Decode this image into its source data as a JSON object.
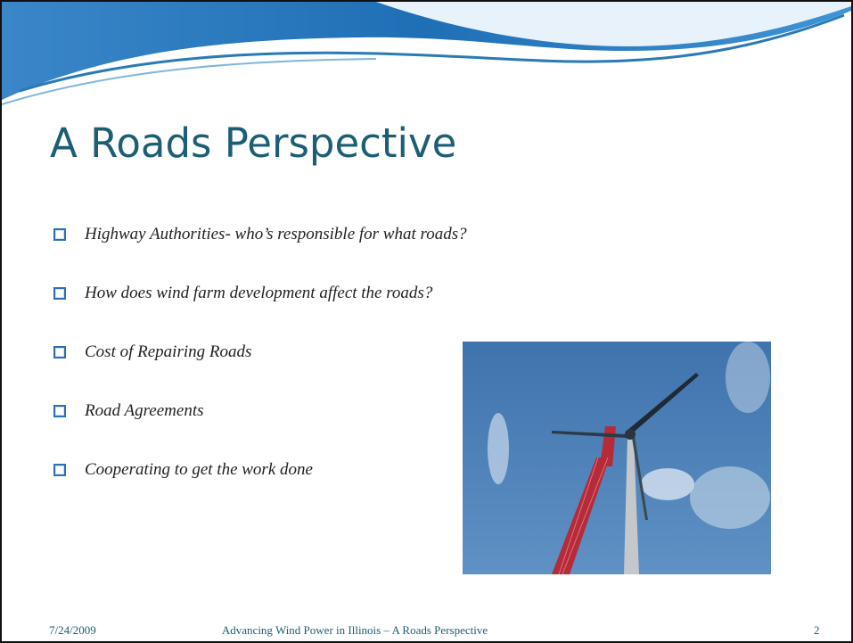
{
  "slide": {
    "title": "A Roads Perspective",
    "bullets": [
      "Highway Authorities- who’s responsible for what roads?",
      "How does wind farm development affect the roads?",
      "Cost of Repairing Roads",
      "Road Agreements",
      "Cooperating to get the work done"
    ],
    "footer": {
      "date": "7/24/2009",
      "text": "Advancing Wind Power in Illinois – A Roads Perspective",
      "page": "2"
    }
  }
}
